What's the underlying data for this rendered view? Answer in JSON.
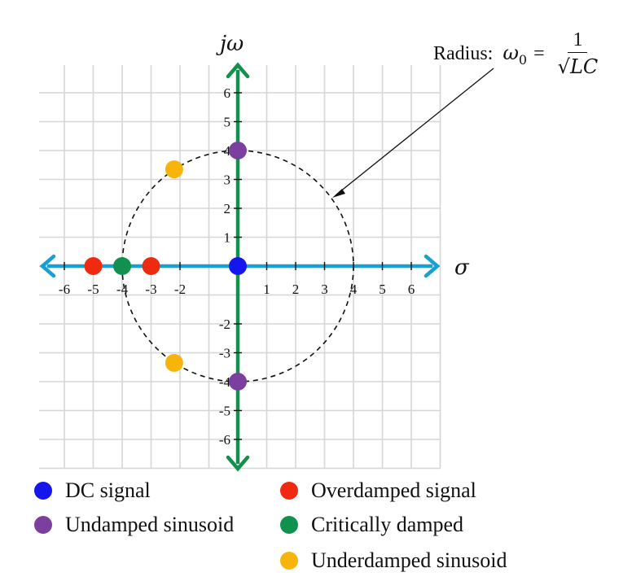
{
  "axes": {
    "x_label": "σ",
    "y_label": "jω",
    "x_ticks": [
      "-6",
      "-5",
      "-4",
      "-3",
      "-2",
      "1",
      "2",
      "3",
      "4",
      "5",
      "6"
    ],
    "y_ticks": [
      "6",
      "5",
      "4",
      "3",
      "2",
      "1",
      "-2",
      "-3",
      "-4",
      "-5",
      "-6"
    ]
  },
  "annotation": {
    "radius_prefix": "Radius:",
    "omega0": "ω",
    "subscript": "0",
    "equals": "=",
    "numerator": "1",
    "denominator": "√LC"
  },
  "chart_data": {
    "type": "scatter",
    "xlim": [
      -7,
      7
    ],
    "ylim": [
      -7,
      7
    ],
    "grid": true,
    "circle_radius": 4,
    "points": [
      {
        "group": "DC signal",
        "color": "#1515ee",
        "x": 0,
        "y": 0
      },
      {
        "group": "Undamped sinusoid",
        "color": "#7b3fa0",
        "x": 0,
        "y": 4
      },
      {
        "group": "Undamped sinusoid",
        "color": "#7b3fa0",
        "x": 0,
        "y": -4
      },
      {
        "group": "Overdamped signal",
        "color": "#f02a10",
        "x": -5,
        "y": 0
      },
      {
        "group": "Overdamped signal",
        "color": "#f02a10",
        "x": -3,
        "y": 0
      },
      {
        "group": "Critically damped",
        "color": "#12914e",
        "x": -4,
        "y": 0
      },
      {
        "group": "Underdamped sinusoid",
        "color": "#f7b50c",
        "x": -2.2,
        "y": 3.35
      },
      {
        "group": "Underdamped sinusoid",
        "color": "#f7b50c",
        "x": -2.2,
        "y": -3.35
      }
    ]
  },
  "legend": [
    {
      "label": "DC signal",
      "color": "#1515ee"
    },
    {
      "label": "Undamped sinusoid",
      "color": "#7b3fa0"
    },
    {
      "label": "Overdamped signal",
      "color": "#f02a10"
    },
    {
      "label": "Critically damped",
      "color": "#12914e"
    },
    {
      "label": "Underdamped sinusoid",
      "color": "#f7b50c"
    }
  ]
}
